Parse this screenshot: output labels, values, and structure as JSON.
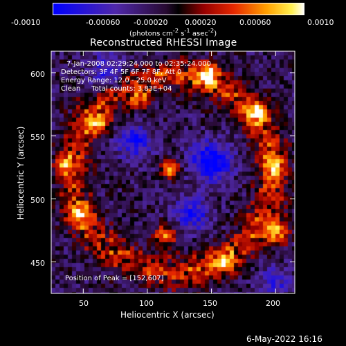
{
  "colorbar": {
    "tick_labels": [
      "-0.0010",
      "-0.00060",
      "-0.00020",
      "0.00020",
      "0.00060",
      "0.0010"
    ],
    "units_prefix": "(photons cm",
    "units_exp1": "-2",
    "units_mid": " s",
    "units_exp2": "-1",
    "units_mid2": " asec",
    "units_exp3": "-2",
    "units_suffix": ")"
  },
  "chart_data": {
    "type": "heatmap",
    "title": "Reconstructed RHESSI Image",
    "xlabel": "Heliocentric X (arcsec)",
    "ylabel": "Heliocentric Y (arcsec)",
    "xlim": [
      25,
      215
    ],
    "ylim": [
      425,
      617
    ],
    "x_ticks": [
      50,
      100,
      150,
      200
    ],
    "y_ticks": [
      450,
      500,
      550,
      600
    ],
    "colorscale_range": [
      -0.001,
      0.001
    ],
    "peak": [
      152,
      607
    ],
    "sources": [
      {
        "x": 118,
        "y": 523,
        "amp": 0.00095,
        "s": 5
      },
      {
        "x": 36,
        "y": 527,
        "amp": 0.00075,
        "s": 5
      },
      {
        "x": 148,
        "y": 598,
        "amp": 0.0009,
        "s": 6
      },
      {
        "x": 186,
        "y": 568,
        "amp": 0.0008,
        "s": 6
      },
      {
        "x": 200,
        "y": 474,
        "amp": 0.00085,
        "s": 7
      },
      {
        "x": 114,
        "y": 471,
        "amp": 0.0008,
        "s": 6
      },
      {
        "x": 94,
        "y": 579,
        "amp": 0.0006,
        "s": 6
      },
      {
        "x": 62,
        "y": 561,
        "amp": 0.0007,
        "s": 6
      },
      {
        "x": 46,
        "y": 488,
        "amp": 0.0007,
        "s": 6
      },
      {
        "x": 160,
        "y": 450,
        "amp": 0.0006,
        "s": 6
      },
      {
        "x": 198,
        "y": 527,
        "amp": 0.00065,
        "s": 6
      },
      {
        "x": 150,
        "y": 530,
        "amp": -0.0009,
        "s": 11
      },
      {
        "x": 90,
        "y": 545,
        "amp": -0.0007,
        "s": 9
      },
      {
        "x": 135,
        "y": 488,
        "amp": -0.0006,
        "s": 10
      },
      {
        "x": 70,
        "y": 600,
        "amp": -0.0006,
        "s": 10
      },
      {
        "x": 200,
        "y": 435,
        "amp": -0.0005,
        "s": 8
      }
    ]
  },
  "overlay": {
    "time": "7-Jan-2008 02:29:24.000 to 02:35:24.000",
    "detectors": "Detectors: 3F 4F 5F 6F 7F 8F, Att 0",
    "energy": "Energy Range: 12.0 - 25.0 keV",
    "clean": "Clean     Total counts: 3.83E+04"
  },
  "peak_text": "Position of Peak = [152,607]",
  "footer_date": "6-May-2022 16:16"
}
